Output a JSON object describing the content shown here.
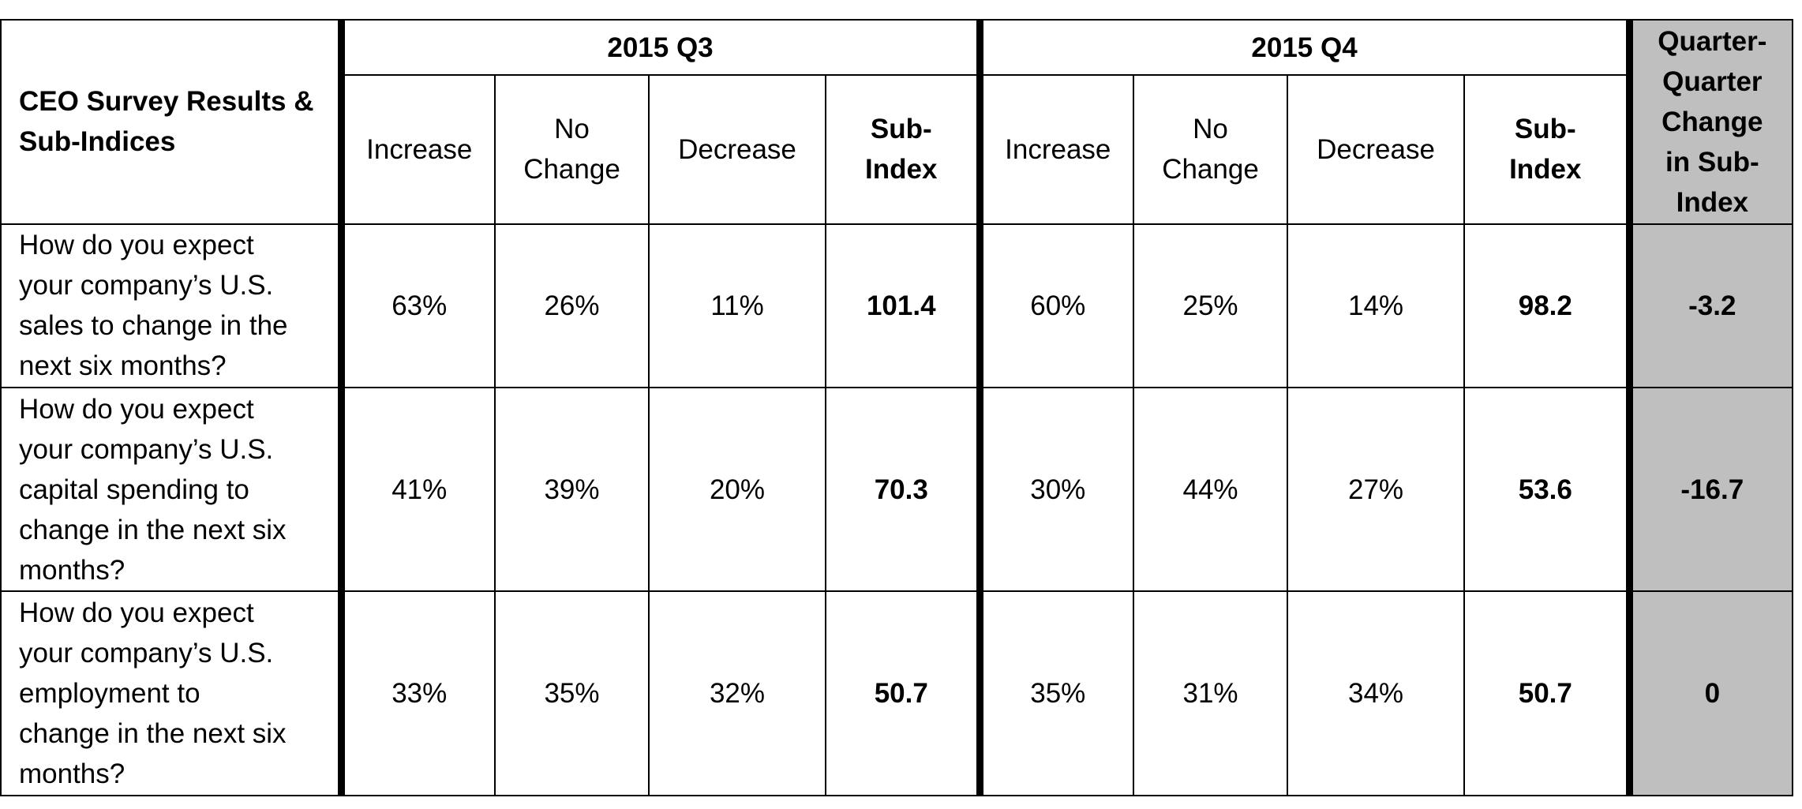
{
  "table": {
    "title_line1": "CEO Survey Results &",
    "title_line2": "Sub-Indices",
    "group_q3": "2015 Q3",
    "group_q4": "2015 Q4",
    "change_header": [
      "Quarter-",
      "Quarter",
      "Change",
      "in Sub-",
      "Index"
    ],
    "col_increase": "Increase",
    "col_no_change": [
      "No",
      "Change"
    ],
    "col_decrease": "Decrease",
    "col_subindex": [
      "Sub-",
      "Index"
    ],
    "rows": [
      {
        "question": [
          "How do you expect",
          "your company’s U.S.",
          "sales to change in the",
          "next six months?"
        ],
        "q3": [
          "63%",
          "26%",
          "11%",
          "101.4"
        ],
        "q4": [
          "60%",
          "25%",
          "14%",
          "98.2"
        ],
        "change": "-3.2"
      },
      {
        "question": [
          "How do you expect",
          "your company’s U.S.",
          "capital spending to",
          "change in the next six",
          "months?"
        ],
        "q3": [
          "41%",
          "39%",
          "20%",
          "70.3"
        ],
        "q4": [
          "30%",
          "44%",
          "27%",
          "53.6"
        ],
        "change": "-16.7"
      },
      {
        "question": [
          "How do you expect",
          "your company’s U.S.",
          "employment to",
          "change in the next six",
          "months?"
        ],
        "q3": [
          "33%",
          "35%",
          "32%",
          "50.7"
        ],
        "q4": [
          "35%",
          "31%",
          "34%",
          "50.7"
        ],
        "change": "0"
      }
    ]
  },
  "colors": {
    "shade": "#bfbfbf",
    "border": "#000000"
  }
}
